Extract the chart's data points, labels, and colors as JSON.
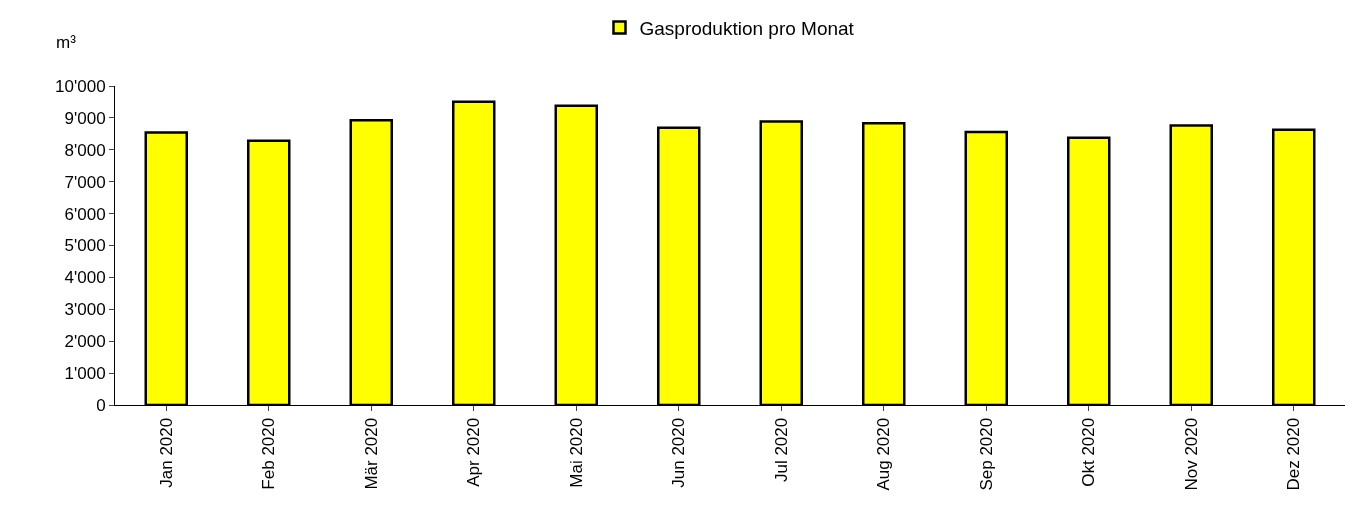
{
  "chart_data": {
    "type": "bar",
    "ylabel": "m³",
    "categories": [
      "Jan 2020",
      "Feb 2020",
      "Mär 2020",
      "Apr 2020",
      "Mai 2020",
      "Jun 2020",
      "Jul 2020",
      "Aug 2020",
      "Sep 2020",
      "Okt 2020",
      "Nov 2020",
      "Dez 2020"
    ],
    "series": [
      {
        "name": "Gasproduktion pro Monat",
        "color": "#ffff00",
        "values": [
          8540,
          8280,
          8930,
          9510,
          9380,
          8690,
          8890,
          8830,
          8560,
          8380,
          8760,
          8630
        ]
      }
    ],
    "ylim": [
      0,
      10000
    ],
    "yticks": [
      0,
      {
        "value": 1000,
        "label": "1'000"
      },
      {
        "value": 2000,
        "label": "2'000"
      },
      {
        "value": 3000,
        "label": "3'000"
      },
      {
        "value": 4000,
        "label": "4'000"
      },
      {
        "value": 5000,
        "label": "5'000"
      },
      {
        "value": 6000,
        "label": "6'000"
      },
      {
        "value": 7000,
        "label": "7'000"
      },
      {
        "value": 8000,
        "label": "8'000"
      },
      {
        "value": 9000,
        "label": "9'000"
      },
      {
        "value": 10000,
        "label": "10'000"
      }
    ],
    "legend": "top"
  }
}
